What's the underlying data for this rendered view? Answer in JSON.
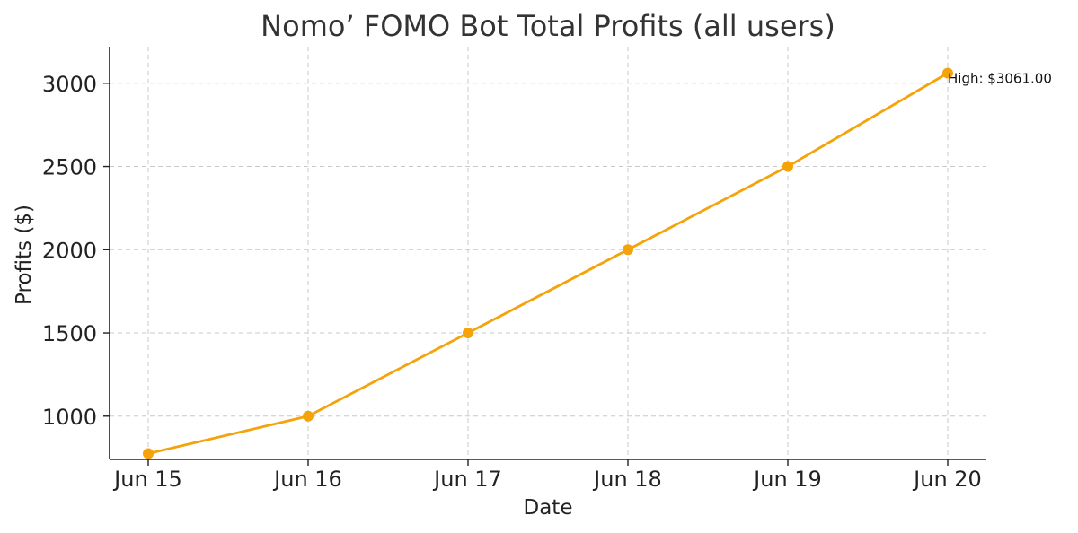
{
  "chart_data": {
    "type": "line",
    "title": "Nomo’ FOMO Bot Total Profits (all users)",
    "xlabel": "Date",
    "ylabel": "Profits ($)",
    "categories": [
      "Jun 15",
      "Jun 16",
      "Jun 17",
      "Jun 18",
      "Jun 19",
      "Jun 20"
    ],
    "series": [
      {
        "values": [
          775,
          1000,
          1500,
          2000,
          2500,
          3061
        ],
        "color": "#f5a30a"
      }
    ],
    "ylim": [
      740,
      3220
    ],
    "yticks": [
      1000,
      1500,
      2000,
      2500,
      3000
    ],
    "grid": true,
    "annotation": {
      "text": "High: $3061.00",
      "category": "Jun 20",
      "value": 3061
    }
  }
}
